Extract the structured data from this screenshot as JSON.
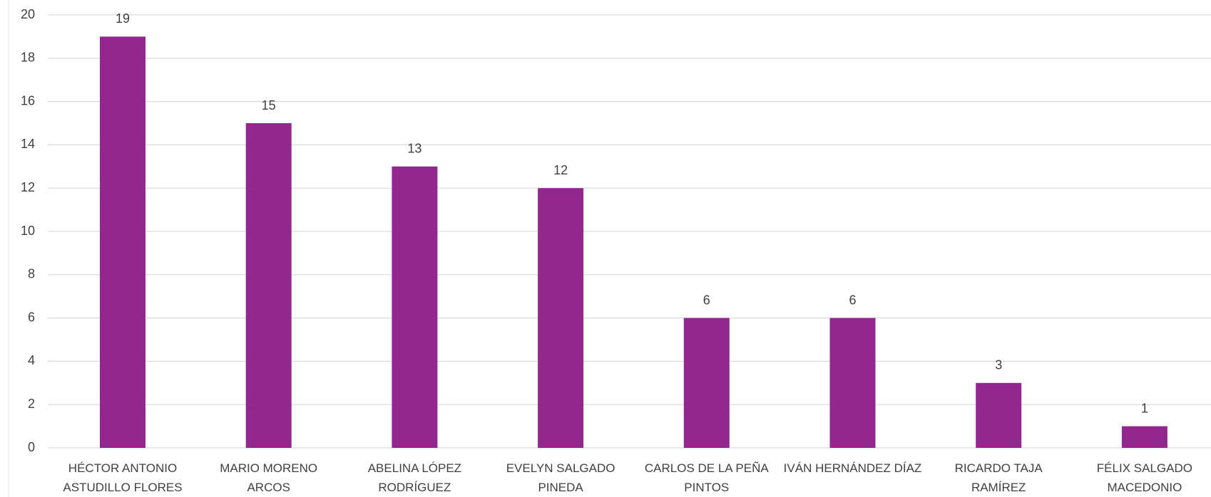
{
  "chart_data": {
    "type": "bar",
    "categories": [
      "HÉCTOR ANTONIO ASTUDILLO FLORES",
      "MARIO MORENO ARCOS",
      "ABELINA LÓPEZ RODRÍGUEZ",
      "EVELYN SALGADO PINEDA",
      "CARLOS DE LA PEÑA PINTOS",
      "IVÁN HERNÁNDEZ DÍAZ",
      "RICARDO TAJA RAMÍREZ",
      "FÉLIX SALGADO MACEDONIO"
    ],
    "values": [
      19,
      15,
      13,
      12,
      6,
      6,
      3,
      1
    ],
    "color": "#92278f",
    "ylim": [
      0,
      20
    ],
    "yticks": [
      0,
      2,
      4,
      6,
      8,
      10,
      12,
      14,
      16,
      18,
      20
    ],
    "grid": true
  }
}
